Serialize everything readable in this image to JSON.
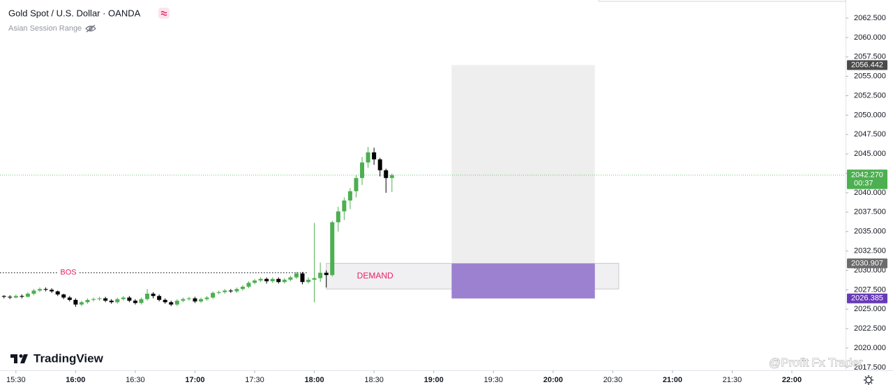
{
  "chart_data": {
    "type": "candlestick",
    "title": "Gold Spot / U.S. Dollar · OANDA",
    "indicator": "Asian Session Range",
    "brand": "TradingView",
    "watermark": "@Profit Fx Trader",
    "up_color": "#4caf50",
    "down_color": "#000000",
    "x": [
      "15:24",
      "15:27",
      "15:30",
      "15:33",
      "15:36",
      "15:39",
      "15:42",
      "15:45",
      "15:48",
      "15:51",
      "15:54",
      "15:57",
      "16:00",
      "16:03",
      "16:06",
      "16:09",
      "16:12",
      "16:15",
      "16:18",
      "16:21",
      "16:24",
      "16:27",
      "16:30",
      "16:33",
      "16:36",
      "16:39",
      "16:42",
      "16:45",
      "16:48",
      "16:51",
      "16:54",
      "16:57",
      "17:00",
      "17:03",
      "17:06",
      "17:09",
      "17:12",
      "17:15",
      "17:18",
      "17:21",
      "17:24",
      "17:27",
      "17:30",
      "17:33",
      "17:36",
      "17:39",
      "17:42",
      "17:45",
      "17:48",
      "17:51",
      "17:54",
      "17:57",
      "18:00",
      "18:03",
      "18:06",
      "18:09",
      "18:12",
      "18:15",
      "18:18",
      "18:21",
      "18:24",
      "18:27",
      "18:30",
      "18:33",
      "18:36",
      "18:39"
    ],
    "open": [
      2026.7,
      2026.6,
      2026.5,
      2026.7,
      2026.6,
      2027.0,
      2027.4,
      2027.6,
      2027.5,
      2027.3,
      2026.9,
      2026.5,
      2026.2,
      2025.6,
      2025.9,
      2026.2,
      2026.3,
      2026.4,
      2026.1,
      2025.9,
      2026.3,
      2026.5,
      2026.1,
      2025.8,
      2026.3,
      2027.0,
      2026.7,
      2026.2,
      2025.9,
      2025.6,
      2026.1,
      2026.3,
      2026.4,
      2026.0,
      2026.3,
      2026.5,
      2027.1,
      2027.2,
      2027.4,
      2027.3,
      2027.6,
      2027.9,
      2028.4,
      2028.7,
      2028.9,
      2028.6,
      2028.9,
      2028.5,
      2028.8,
      2029.1,
      2029.6,
      2028.5,
      2028.8,
      2029.0,
      2029.7,
      2029.4,
      2036.2,
      2037.6,
      2039.0,
      2040.2,
      2041.9,
      2043.9,
      2045.2,
      2044.3,
      2042.9,
      2041.9
    ],
    "high": [
      2026.8,
      2026.8,
      2026.9,
      2026.9,
      2027.2,
      2027.6,
      2027.8,
      2027.8,
      2027.7,
      2027.4,
      2027.0,
      2026.7,
      2026.4,
      2026.1,
      2026.4,
      2026.5,
      2026.6,
      2026.6,
      2026.3,
      2026.5,
      2026.7,
      2026.7,
      2026.3,
      2026.5,
      2027.6,
      2027.2,
      2026.9,
      2026.4,
      2026.1,
      2026.3,
      2026.5,
      2026.6,
      2026.6,
      2026.5,
      2026.7,
      2027.3,
      2027.4,
      2027.6,
      2027.6,
      2027.8,
      2028.1,
      2028.6,
      2028.9,
      2029.1,
      2029.1,
      2029.1,
      2029.1,
      2029.0,
      2029.3,
      2029.8,
      2029.8,
      2029.1,
      2036.1,
      2031.0,
      2030.0,
      2036.4,
      2038.2,
      2039.4,
      2040.6,
      2042.3,
      2044.6,
      2045.9,
      2045.8,
      2044.5,
      2043.1,
      2042.5
    ],
    "low": [
      2026.4,
      2026.3,
      2026.4,
      2026.4,
      2026.5,
      2026.8,
      2027.2,
      2027.3,
      2027.1,
      2026.7,
      2026.3,
      2026.0,
      2025.3,
      2025.4,
      2025.7,
      2026.0,
      2026.1,
      2025.9,
      2025.7,
      2025.7,
      2026.1,
      2025.9,
      2025.6,
      2025.6,
      2026.1,
      2026.4,
      2026.0,
      2025.7,
      2025.4,
      2025.4,
      2025.9,
      2026.1,
      2025.8,
      2025.8,
      2026.1,
      2026.3,
      2026.9,
      2027.0,
      2027.1,
      2027.1,
      2027.4,
      2027.7,
      2028.2,
      2028.5,
      2028.3,
      2028.4,
      2028.3,
      2028.3,
      2028.6,
      2028.9,
      2028.2,
      2028.3,
      2025.9,
      2028.5,
      2027.8,
      2029.2,
      2035.0,
      2036.5,
      2037.9,
      2039.4,
      2041.0,
      2043.2,
      2043.6,
      2042.1,
      2040.0,
      2040.1
    ],
    "close": [
      2026.6,
      2026.5,
      2026.7,
      2026.6,
      2027.0,
      2027.4,
      2027.6,
      2027.5,
      2027.3,
      2026.9,
      2026.5,
      2026.2,
      2025.6,
      2025.9,
      2026.2,
      2026.3,
      2026.4,
      2026.1,
      2025.9,
      2026.3,
      2026.5,
      2026.1,
      2025.8,
      2026.3,
      2027.0,
      2026.7,
      2026.2,
      2025.9,
      2025.6,
      2026.1,
      2026.3,
      2026.4,
      2026.0,
      2026.3,
      2026.5,
      2027.1,
      2027.2,
      2027.4,
      2027.3,
      2027.6,
      2027.9,
      2028.4,
      2028.7,
      2028.9,
      2028.6,
      2028.9,
      2028.5,
      2028.8,
      2029.1,
      2029.6,
      2028.5,
      2028.8,
      2029.0,
      2029.7,
      2029.4,
      2036.2,
      2037.6,
      2039.0,
      2040.2,
      2041.9,
      2043.9,
      2045.2,
      2044.3,
      2042.9,
      2041.9,
      2042.27
    ],
    "xlim": [
      "15:22",
      "22:27"
    ],
    "ylim": [
      2017.31,
      2064.83
    ],
    "xticks": [
      "15:30",
      "16:00",
      "16:30",
      "17:00",
      "17:30",
      "18:00",
      "18:30",
      "19:00",
      "19:30",
      "20:00",
      "20:30",
      "21:00",
      "21:30",
      "22:00"
    ],
    "yticks": [
      {
        "value": 2017.5,
        "label": "2017.500"
      },
      {
        "value": 2020,
        "label": "2020.000"
      },
      {
        "value": 2022.5,
        "label": "2022.500"
      },
      {
        "value": 2025,
        "label": "2025.000"
      },
      {
        "value": 2027.5,
        "label": "2027.500"
      },
      {
        "value": 2030,
        "label": "2030.000"
      },
      {
        "value": 2032.5,
        "label": "2032.500"
      },
      {
        "value": 2035,
        "label": "2035.000"
      },
      {
        "value": 2037.5,
        "label": "2037.500"
      },
      {
        "value": 2040,
        "label": "2040.000"
      },
      {
        "value": 2042.5,
        "label": "2042.500"
      },
      {
        "value": 2045,
        "label": "2045.000"
      },
      {
        "value": 2047.5,
        "label": "2047.500"
      },
      {
        "value": 2050,
        "label": "2050.000"
      },
      {
        "value": 2052.5,
        "label": "2052.500"
      },
      {
        "value": 2055,
        "label": "2055.000"
      },
      {
        "value": 2057.5,
        "label": "2057.500"
      },
      {
        "value": 2060,
        "label": "2060.000"
      },
      {
        "value": 2062.5,
        "label": "2062.500"
      }
    ],
    "bos": {
      "label": "BOS",
      "value": 2029.7,
      "start": "15:22",
      "end": "17:57",
      "color": "#e91e63"
    },
    "demand": {
      "label": "DEMAND",
      "top": 2030.907,
      "bottom": 2027.6,
      "start": "18:06",
      "end": "20:33",
      "color": "#e91e63"
    },
    "position": {
      "start": "19:09",
      "end": "20:21",
      "target": 2056.442,
      "entry": 2030.907,
      "stop": 2026.385,
      "target_color": "#4a4a4a",
      "entry_color": "#6b6b6b",
      "stop_color": "#673ab7"
    },
    "last_price": {
      "value": 2042.27,
      "label": "2042.270",
      "countdown": "00:37"
    }
  }
}
